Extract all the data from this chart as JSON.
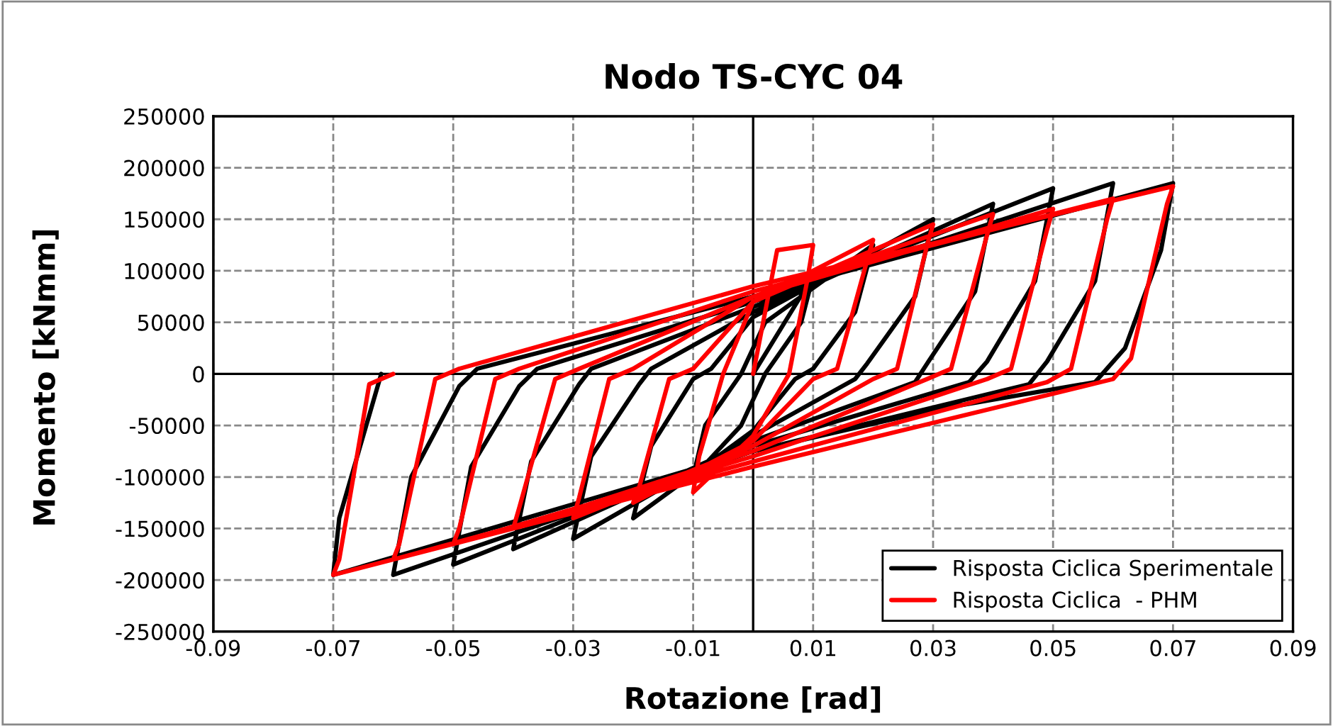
{
  "chart_data": {
    "type": "line",
    "title": "Nodo TS-CYC 04",
    "xlabel": "Rotazione [rad]",
    "ylabel": "Momento [kNmm]",
    "xlim": [
      -0.09,
      0.09
    ],
    "xticks": [
      -0.09,
      -0.07,
      -0.05,
      -0.03,
      -0.01,
      0.01,
      0.03,
      0.05,
      0.07,
      0.09
    ],
    "ylim": [
      -250000,
      250000
    ],
    "yticks": [
      -250000,
      -200000,
      -150000,
      -100000,
      -50000,
      0,
      50000,
      100000,
      150000,
      200000,
      250000
    ],
    "grid": true,
    "legend": "bottom right",
    "marker": "none",
    "line_style": "solid",
    "series": [
      {
        "name": "Risposta Ciclica Sperimentale",
        "color": "#000000",
        "x": [
          0,
          0.01,
          0.008,
          0.002,
          -0.002,
          -0.01,
          -0.008,
          -0.002,
          0.002,
          0.02,
          0.017,
          0.01,
          0.007,
          0,
          -0.02,
          -0.017,
          -0.01,
          -0.007,
          0,
          0.03,
          0.027,
          0.019,
          0.017,
          0,
          -0.03,
          -0.027,
          -0.019,
          -0.017,
          0,
          0.04,
          0.037,
          0.029,
          0.027,
          0,
          -0.04,
          -0.037,
          -0.029,
          -0.027,
          0,
          0.05,
          0.047,
          0.039,
          0.036,
          0,
          -0.05,
          -0.047,
          -0.039,
          -0.036,
          0,
          0.06,
          0.057,
          0.049,
          0.046,
          0,
          -0.06,
          -0.057,
          -0.049,
          -0.046,
          0,
          0.07,
          0.068,
          0.062,
          0.057,
          0.03,
          0,
          -0.07,
          -0.069,
          -0.064,
          -0.062
        ],
        "values": [
          0,
          95000,
          50000,
          0,
          -50000,
          -100000,
          -50000,
          0,
          50000,
          125000,
          60000,
          5000,
          -5000,
          -55000,
          -140000,
          -70000,
          -5000,
          5000,
          55000,
          150000,
          75000,
          10000,
          -5000,
          -60000,
          -160000,
          -80000,
          -10000,
          5000,
          60000,
          165000,
          80000,
          10000,
          -8000,
          -65000,
          -170000,
          -85000,
          -10000,
          5000,
          65000,
          180000,
          90000,
          12000,
          -8000,
          -70000,
          -185000,
          -90000,
          -12000,
          5000,
          70000,
          185000,
          90000,
          12000,
          -10000,
          -75000,
          -195000,
          -100000,
          -12000,
          5000,
          75000,
          185000,
          120000,
          25000,
          -8000,
          -35000,
          -75000,
          -195000,
          -140000,
          -40000,
          0
        ]
      },
      {
        "name": "Risposta Ciclica  - PHM",
        "color": "#ff0000",
        "x": [
          0,
          0.004,
          0.01,
          0.009,
          0.006,
          0,
          -0.01,
          -0.009,
          -0.005,
          0,
          0.02,
          0.019,
          0.014,
          0.01,
          0,
          -0.02,
          -0.019,
          -0.014,
          -0.01,
          0,
          0.03,
          0.029,
          0.024,
          0.02,
          0,
          -0.03,
          -0.029,
          -0.024,
          -0.02,
          0,
          0.04,
          0.039,
          0.033,
          0.029,
          0,
          -0.04,
          -0.039,
          -0.033,
          -0.029,
          0,
          0.05,
          0.049,
          0.043,
          0.039,
          0,
          -0.05,
          -0.049,
          -0.043,
          -0.039,
          0,
          0.06,
          0.059,
          0.053,
          0.049,
          0,
          -0.06,
          -0.059,
          -0.053,
          -0.049,
          0,
          0.07,
          0.069,
          0.063,
          0.06,
          0,
          -0.07,
          -0.069,
          -0.064,
          -0.06
        ],
        "values": [
          0,
          120000,
          125000,
          90000,
          0,
          -60000,
          -115000,
          -80000,
          0,
          70000,
          130000,
          110000,
          5000,
          -5000,
          -65000,
          -125000,
          -110000,
          -5000,
          5000,
          70000,
          145000,
          125000,
          5000,
          -5000,
          -70000,
          -140000,
          -120000,
          -5000,
          5000,
          75000,
          155000,
          135000,
          5000,
          -5000,
          -75000,
          -150000,
          -130000,
          -5000,
          5000,
          75000,
          160000,
          140000,
          5000,
          -5000,
          -80000,
          -165000,
          -150000,
          -5000,
          5000,
          80000,
          170000,
          150000,
          5000,
          -8000,
          -85000,
          -180000,
          -165000,
          -5000,
          5000,
          85000,
          182000,
          165000,
          15000,
          -5000,
          -90000,
          -195000,
          -180000,
          -10000,
          0
        ]
      }
    ]
  }
}
